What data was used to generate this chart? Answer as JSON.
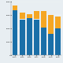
{
  "years": [
    "2014",
    "2015",
    "2016",
    "2017",
    "2018",
    "2019",
    "2020"
  ],
  "pass_values": [
    3400,
    2700,
    2800,
    2700,
    2100,
    1600,
    2000
  ],
  "fail_values": [
    300,
    500,
    300,
    600,
    1200,
    1400,
    900
  ],
  "pass_color": "#1a6fa8",
  "fail_color": "#f5a623",
  "background_color": "#e8eef2",
  "ylim": [
    0,
    4000
  ],
  "bar_width": 0.75,
  "yticks": [
    0,
    1000,
    2000,
    3000,
    4000
  ]
}
